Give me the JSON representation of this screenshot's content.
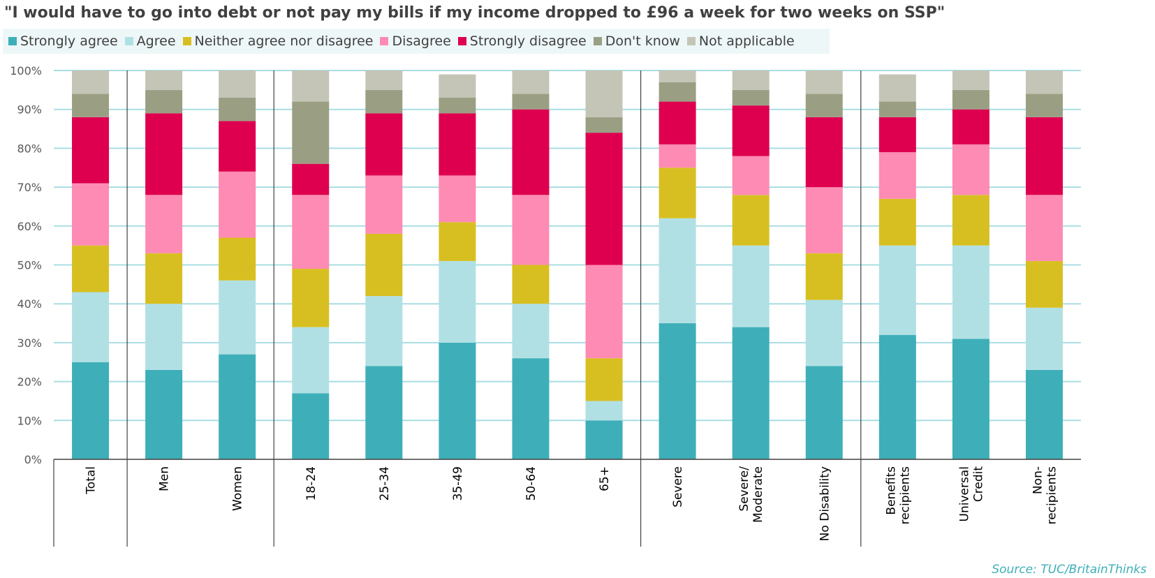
{
  "chart_data": {
    "type": "bar",
    "stacked": true,
    "title": "\"I would have to go into debt or not pay my bills if my income dropped to £96 a week for two weeks on SSP\"",
    "xlabel": "",
    "ylabel": "",
    "ylim": [
      0,
      100
    ],
    "y_ticks": [
      "0%",
      "10%",
      "20%",
      "30%",
      "40%",
      "50%",
      "60%",
      "70%",
      "80%",
      "90%",
      "100%"
    ],
    "grid": true,
    "legend_position": "top",
    "categories": [
      "Total",
      "Men",
      "Women",
      "18-24",
      "25-34",
      "35-49",
      "50-64",
      "65+",
      "Severe",
      "Severe/\nModerate",
      "No Disability",
      "Benefits\nrecipients",
      "Universal\nCredit",
      "Non-\nrecipients"
    ],
    "group_breaks_after": [
      0,
      2,
      7,
      10
    ],
    "series": [
      {
        "name": "Strongly agree",
        "color": "#3eafb8",
        "values": [
          25,
          23,
          27,
          17,
          24,
          30,
          26,
          10,
          35,
          34,
          24,
          32,
          31,
          23
        ]
      },
      {
        "name": "Agree",
        "color": "#b1e0e4",
        "values": [
          18,
          17,
          19,
          17,
          18,
          21,
          14,
          5,
          27,
          21,
          17,
          23,
          24,
          16
        ]
      },
      {
        "name": "Neither agree nor disagree",
        "color": "#d8bf21",
        "values": [
          12,
          13,
          11,
          15,
          16,
          10,
          10,
          11,
          13,
          13,
          12,
          12,
          13,
          12
        ]
      },
      {
        "name": "Disagree",
        "color": "#fd8bb3",
        "values": [
          16,
          15,
          17,
          19,
          15,
          12,
          18,
          24,
          6,
          10,
          17,
          12,
          13,
          17
        ]
      },
      {
        "name": "Strongly disagree",
        "color": "#de004e",
        "values": [
          17,
          21,
          13,
          8,
          16,
          16,
          22,
          34,
          11,
          13,
          18,
          9,
          9,
          20
        ]
      },
      {
        "name": "Don't know",
        "color": "#9a9f84",
        "values": [
          6,
          6,
          6,
          16,
          6,
          4,
          4,
          4,
          5,
          4,
          6,
          4,
          5,
          6
        ]
      },
      {
        "name": "Not applicable",
        "color": "#c4c5b6",
        "values": [
          6,
          5,
          7,
          8,
          5,
          6,
          6,
          12,
          3,
          5,
          6,
          7,
          5,
          6
        ]
      }
    ],
    "source": "Source: TUC/BritainThinks"
  }
}
